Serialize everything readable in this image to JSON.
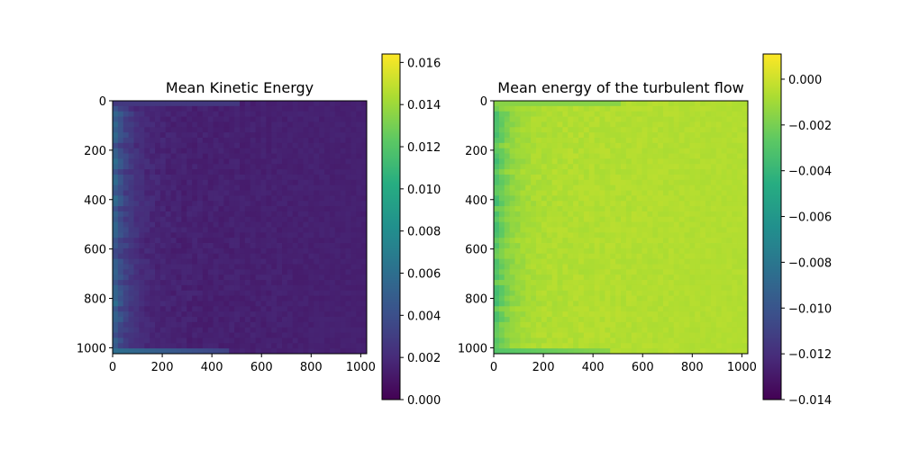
{
  "chart_data": [
    {
      "type": "heatmap",
      "title": "Mean Kinetic Energy",
      "xlim": [
        0,
        1024
      ],
      "ylim": [
        1024,
        0
      ],
      "xticks": [
        0,
        200,
        400,
        600,
        800,
        1000
      ],
      "yticks": [
        0,
        200,
        400,
        600,
        800,
        1000
      ],
      "colormap": "viridis",
      "colorbar": {
        "vmin": 0.0,
        "vmax": 0.0164,
        "ticks": [
          "0.000",
          "0.002",
          "0.004",
          "0.006",
          "0.008",
          "0.010",
          "0.012",
          "0.014",
          "0.016"
        ],
        "tick_values": [
          0.0,
          0.002,
          0.004,
          0.006,
          0.008,
          0.01,
          0.012,
          0.014,
          0.016
        ]
      },
      "field_summary": {
        "background_value": 0.0015,
        "left_edge_max": 0.0065,
        "bottom_band_value": 0.006
      }
    },
    {
      "type": "heatmap",
      "title": "Mean energy of the turbulent flow",
      "xlim": [
        0,
        1024
      ],
      "ylim": [
        1024,
        0
      ],
      "xticks": [
        0,
        200,
        400,
        600,
        800,
        1000
      ],
      "yticks": [
        0,
        200,
        400,
        600,
        800,
        1000
      ],
      "colormap": "viridis",
      "colorbar": {
        "vmin": -0.014,
        "vmax": 0.0011,
        "ticks": [
          "0.000",
          "−0.002",
          "−0.004",
          "−0.006",
          "−0.008",
          "−0.010",
          "−0.012",
          "−0.014"
        ],
        "tick_values": [
          0.0,
          -0.002,
          -0.004,
          -0.006,
          -0.008,
          -0.01,
          -0.012,
          -0.014
        ]
      },
      "field_summary": {
        "background_value": -0.0006,
        "left_edge_min": -0.004,
        "bottom_band_value": -0.003
      }
    }
  ]
}
